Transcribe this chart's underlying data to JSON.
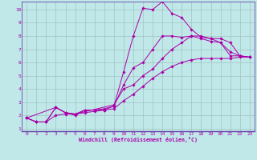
{
  "title": "",
  "xlabel": "Windchill (Refroidissement éolien,°C)",
  "ylabel": "",
  "bg_color": "#c0e8e8",
  "line_color": "#aa00aa",
  "grid_color": "#99bbbb",
  "spine_color": "#6644aa",
  "xlim": [
    -0.5,
    23.5
  ],
  "ylim": [
    0.8,
    10.6
  ],
  "xticks": [
    0,
    1,
    2,
    3,
    4,
    5,
    6,
    7,
    8,
    9,
    10,
    11,
    12,
    13,
    14,
    15,
    16,
    17,
    18,
    19,
    20,
    21,
    22,
    23
  ],
  "yticks": [
    1,
    2,
    3,
    4,
    5,
    6,
    7,
    8,
    9,
    10
  ],
  "lines": [
    {
      "x": [
        0,
        1,
        2,
        3,
        4,
        5,
        6,
        7,
        8,
        9,
        10,
        11,
        12,
        13,
        14,
        15,
        16,
        17,
        18,
        19,
        20,
        21,
        22,
        23
      ],
      "y": [
        1.8,
        1.5,
        1.5,
        2.6,
        2.2,
        2.0,
        2.4,
        2.4,
        2.4,
        2.7,
        5.3,
        8.0,
        10.1,
        10.0,
        10.6,
        9.7,
        9.4,
        8.5,
        7.9,
        7.8,
        7.5,
        6.5,
        6.5,
        6.4
      ]
    },
    {
      "x": [
        0,
        1,
        2,
        3,
        4,
        5,
        6,
        7,
        8,
        9,
        10,
        11,
        12,
        13,
        14,
        15,
        16,
        17,
        18,
        19,
        20,
        21,
        22,
        23
      ],
      "y": [
        1.8,
        1.5,
        1.5,
        2.6,
        2.2,
        2.1,
        2.4,
        2.4,
        2.5,
        2.7,
        4.3,
        5.6,
        6.0,
        7.0,
        8.0,
        8.0,
        7.9,
        8.0,
        7.8,
        7.6,
        7.5,
        6.8,
        6.5,
        6.4
      ]
    },
    {
      "x": [
        0,
        3,
        4,
        5,
        9,
        10,
        11,
        12,
        13,
        14,
        15,
        16,
        17,
        18,
        19,
        20,
        21,
        22,
        23
      ],
      "y": [
        1.8,
        2.6,
        2.2,
        2.1,
        2.8,
        4.0,
        4.3,
        5.0,
        5.5,
        6.3,
        7.0,
        7.5,
        8.0,
        8.0,
        7.8,
        7.8,
        7.5,
        6.5,
        6.4
      ]
    },
    {
      "x": [
        0,
        1,
        2,
        3,
        4,
        5,
        6,
        7,
        8,
        9,
        10,
        11,
        12,
        13,
        14,
        15,
        16,
        17,
        18,
        19,
        20,
        21,
        22,
        23
      ],
      "y": [
        1.8,
        1.5,
        1.5,
        2.0,
        2.1,
        2.1,
        2.2,
        2.3,
        2.4,
        2.5,
        3.1,
        3.6,
        4.2,
        4.8,
        5.3,
        5.7,
        6.0,
        6.2,
        6.3,
        6.3,
        6.3,
        6.3,
        6.4,
        6.4
      ]
    }
  ]
}
